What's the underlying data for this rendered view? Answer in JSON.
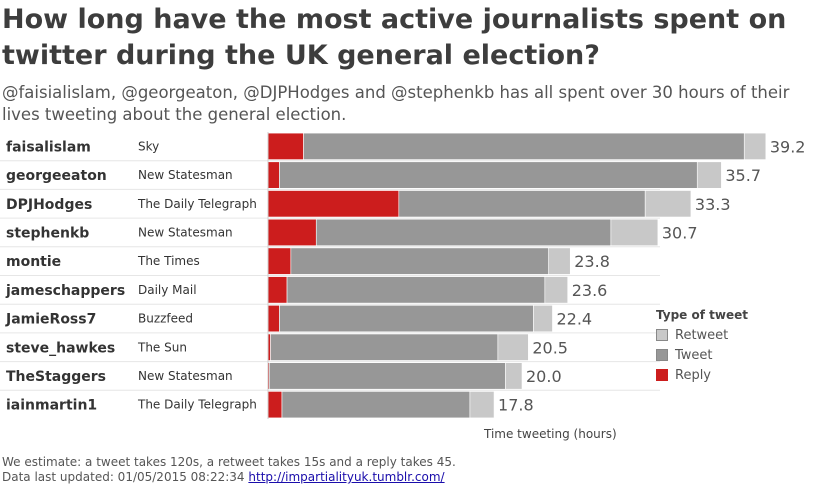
{
  "title": "How long have the most active journalists spent on twitter during the UK general election?",
  "subtitle": "@faisialislam, @georgeaton, @DJPHodges and @stephenkb has all spent over 30 hours of their lives tweeting about the general election.",
  "chart_data": {
    "type": "bar",
    "orientation": "horizontal",
    "stacked": true,
    "categories": [
      "faisalislam",
      "georgeeaton",
      "DPJHodges",
      "stephenkb",
      "montie",
      "jameschappers",
      "JamieRoss7",
      "steve_hawkes",
      "TheStaggers",
      "iainmartin1"
    ],
    "outlets": [
      "Sky",
      "New Statesman",
      "The Daily Telegraph",
      "New Statesman",
      "The Times",
      "Daily Mail",
      "Buzzfeed",
      "The Sun",
      "New Statesman",
      "The Daily Telegraph"
    ],
    "series": [
      {
        "name": "Reply",
        "color": "#cc1d1d",
        "values": [
          2.8,
          0.9,
          10.3,
          3.8,
          1.8,
          1.5,
          0.9,
          0.2,
          0.1,
          1.1
        ]
      },
      {
        "name": "Tweet",
        "color": "#979797",
        "values": [
          34.7,
          32.9,
          19.4,
          23.2,
          20.3,
          20.3,
          20.0,
          17.9,
          18.6,
          14.8
        ]
      },
      {
        "name": "Retweet",
        "color": "#c8c8c8",
        "values": [
          1.7,
          1.9,
          3.6,
          3.7,
          1.7,
          1.8,
          1.5,
          2.4,
          1.3,
          1.9
        ]
      }
    ],
    "totals": [
      "39.2",
      "35.7",
      "33.3",
      "30.7",
      "23.8",
      "23.6",
      "22.4",
      "20.5",
      "20.0",
      "17.8"
    ],
    "xlabel": "Time tweeting (hours)",
    "xlim": [
      0,
      40
    ],
    "legend_title": "Type of tweet",
    "legend": [
      "Retweet",
      "Tweet",
      "Reply"
    ],
    "legend_position": "right"
  },
  "footnote": {
    "line1": "We estimate: a tweet takes 120s, a retweet takes 15s and a reply takes 45.",
    "line2_prefix": "Data last updated: 01/05/2015 08:22:34",
    "link": "http://impartialityuk.tumblr.com/"
  }
}
